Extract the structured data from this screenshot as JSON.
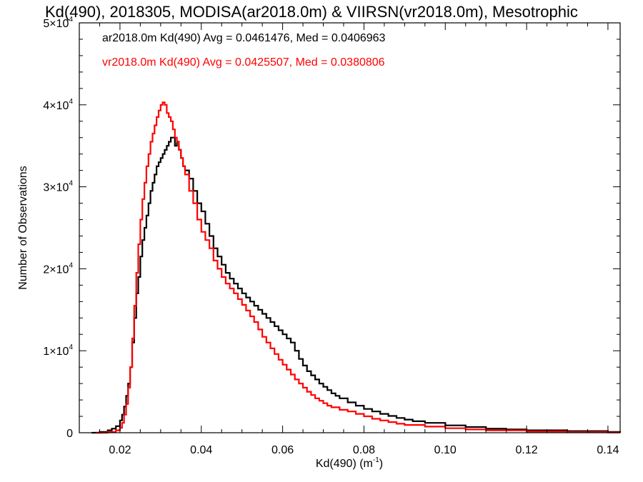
{
  "chart_data": {
    "type": "line",
    "step": true,
    "title": "Kd(490), 2018305, MODISA(ar2018.0m) & VIIRSN(vr2018.0m), Mesotrophic",
    "xlabel": "Kd(490) (m",
    "xlabel_sup": "-1",
    "xlabel_suffix": ")",
    "ylabel": "Number of Observations",
    "xlim": [
      0.01,
      0.143
    ],
    "ylim": [
      0,
      50000
    ],
    "grid": false,
    "x_ticks": [
      {
        "value": 0.02,
        "label": "0.02"
      },
      {
        "value": 0.04,
        "label": "0.04"
      },
      {
        "value": 0.06,
        "label": "0.06"
      },
      {
        "value": 0.08,
        "label": "0.08"
      },
      {
        "value": 0.1,
        "label": "0.10"
      },
      {
        "value": 0.12,
        "label": "0.12"
      },
      {
        "value": 0.14,
        "label": "0.14"
      }
    ],
    "y_ticks": [
      {
        "value": 0,
        "label": "0",
        "sup": ""
      },
      {
        "value": 10000,
        "label": "1×10",
        "sup": "4"
      },
      {
        "value": 20000,
        "label": "2×10",
        "sup": "4"
      },
      {
        "value": 30000,
        "label": "3×10",
        "sup": "4"
      },
      {
        "value": 40000,
        "label": "4×10",
        "sup": "4"
      },
      {
        "value": 50000,
        "label": "5×10",
        "sup": "4"
      }
    ],
    "legend_placement": "top-left",
    "series": [
      {
        "name": "ar2018.0m",
        "color": "#000000",
        "legend_text": "ar2018.0m Kd(490) Avg = 0.0461476, Med = 0.0406963",
        "x": [
          0.013,
          0.015,
          0.017,
          0.018,
          0.019,
          0.02,
          0.0205,
          0.021,
          0.0215,
          0.022,
          0.0225,
          0.023,
          0.0235,
          0.024,
          0.0245,
          0.025,
          0.0255,
          0.026,
          0.0265,
          0.027,
          0.0275,
          0.028,
          0.0285,
          0.029,
          0.0295,
          0.03,
          0.0305,
          0.031,
          0.0315,
          0.032,
          0.0325,
          0.033,
          0.0335,
          0.034,
          0.0345,
          0.035,
          0.0355,
          0.036,
          0.037,
          0.038,
          0.039,
          0.04,
          0.041,
          0.042,
          0.043,
          0.044,
          0.045,
          0.046,
          0.047,
          0.048,
          0.049,
          0.05,
          0.051,
          0.052,
          0.053,
          0.054,
          0.055,
          0.056,
          0.057,
          0.058,
          0.059,
          0.06,
          0.061,
          0.062,
          0.063,
          0.064,
          0.065,
          0.066,
          0.067,
          0.068,
          0.069,
          0.07,
          0.071,
          0.072,
          0.073,
          0.074,
          0.076,
          0.078,
          0.08,
          0.082,
          0.084,
          0.086,
          0.088,
          0.09,
          0.092,
          0.095,
          0.1,
          0.105,
          0.11,
          0.115,
          0.12,
          0.13,
          0.14,
          0.143
        ],
        "y": [
          0,
          100,
          300,
          500,
          800,
          1500,
          2200,
          3200,
          4500,
          6000,
          8000,
          11000,
          14000,
          17000,
          19000,
          21500,
          23500,
          25000,
          26500,
          28000,
          29500,
          30500,
          31500,
          32500,
          33000,
          33500,
          34000,
          34500,
          35000,
          35500,
          36000,
          36000,
          35000,
          35500,
          34500,
          33500,
          32500,
          32000,
          31000,
          29500,
          28000,
          27000,
          25500,
          24000,
          22500,
          21500,
          20500,
          19500,
          18800,
          18200,
          17600,
          17000,
          16500,
          16000,
          15500,
          15000,
          14500,
          14000,
          13500,
          13000,
          12500,
          12000,
          11500,
          11000,
          10000,
          9000,
          8200,
          7500,
          7000,
          6500,
          6000,
          5600,
          5200,
          4800,
          4500,
          4200,
          3700,
          3300,
          2900,
          2600,
          2300,
          2050,
          1800,
          1600,
          1400,
          1200,
          900,
          700,
          500,
          400,
          300,
          200,
          100,
          50
        ]
      },
      {
        "name": "vr2018.0m",
        "color": "#ff0000",
        "legend_text": "vr2018.0m Kd(490) Avg = 0.0425507, Med = 0.0380806",
        "x": [
          0.014,
          0.017,
          0.019,
          0.02,
          0.0205,
          0.021,
          0.0215,
          0.022,
          0.0225,
          0.023,
          0.0235,
          0.024,
          0.0245,
          0.025,
          0.0255,
          0.026,
          0.0265,
          0.027,
          0.0275,
          0.028,
          0.0285,
          0.029,
          0.0295,
          0.03,
          0.0305,
          0.031,
          0.0315,
          0.032,
          0.0325,
          0.033,
          0.0335,
          0.034,
          0.0345,
          0.035,
          0.0355,
          0.036,
          0.037,
          0.038,
          0.039,
          0.04,
          0.041,
          0.042,
          0.043,
          0.044,
          0.045,
          0.046,
          0.047,
          0.048,
          0.049,
          0.05,
          0.051,
          0.052,
          0.053,
          0.054,
          0.055,
          0.056,
          0.057,
          0.058,
          0.059,
          0.06,
          0.061,
          0.062,
          0.063,
          0.064,
          0.065,
          0.066,
          0.067,
          0.068,
          0.069,
          0.07,
          0.071,
          0.072,
          0.074,
          0.076,
          0.078,
          0.08,
          0.082,
          0.084,
          0.086,
          0.088,
          0.09,
          0.095,
          0.1,
          0.105,
          0.11,
          0.12,
          0.13,
          0.14,
          0.143
        ],
        "y": [
          0,
          100,
          300,
          600,
          1200,
          2200,
          3500,
          5500,
          8000,
          11500,
          15500,
          19500,
          23000,
          26000,
          28500,
          30500,
          32500,
          34000,
          35500,
          36500,
          37500,
          38500,
          39300,
          40000,
          40300,
          40000,
          39000,
          38500,
          38000,
          37000,
          36000,
          35500,
          34500,
          33500,
          32500,
          31500,
          29500,
          28000,
          26000,
          24500,
          23500,
          22500,
          21000,
          20000,
          19000,
          18200,
          17600,
          17000,
          16300,
          15600,
          14900,
          14200,
          13500,
          12600,
          11700,
          11000,
          10300,
          9600,
          8900,
          8300,
          7700,
          7100,
          6500,
          6000,
          5500,
          5000,
          4600,
          4200,
          3900,
          3600,
          3300,
          3100,
          2800,
          2600,
          2300,
          2000,
          1700,
          1500,
          1300,
          1100,
          950,
          750,
          550,
          400,
          300,
          150,
          80,
          30,
          10
        ]
      }
    ]
  }
}
